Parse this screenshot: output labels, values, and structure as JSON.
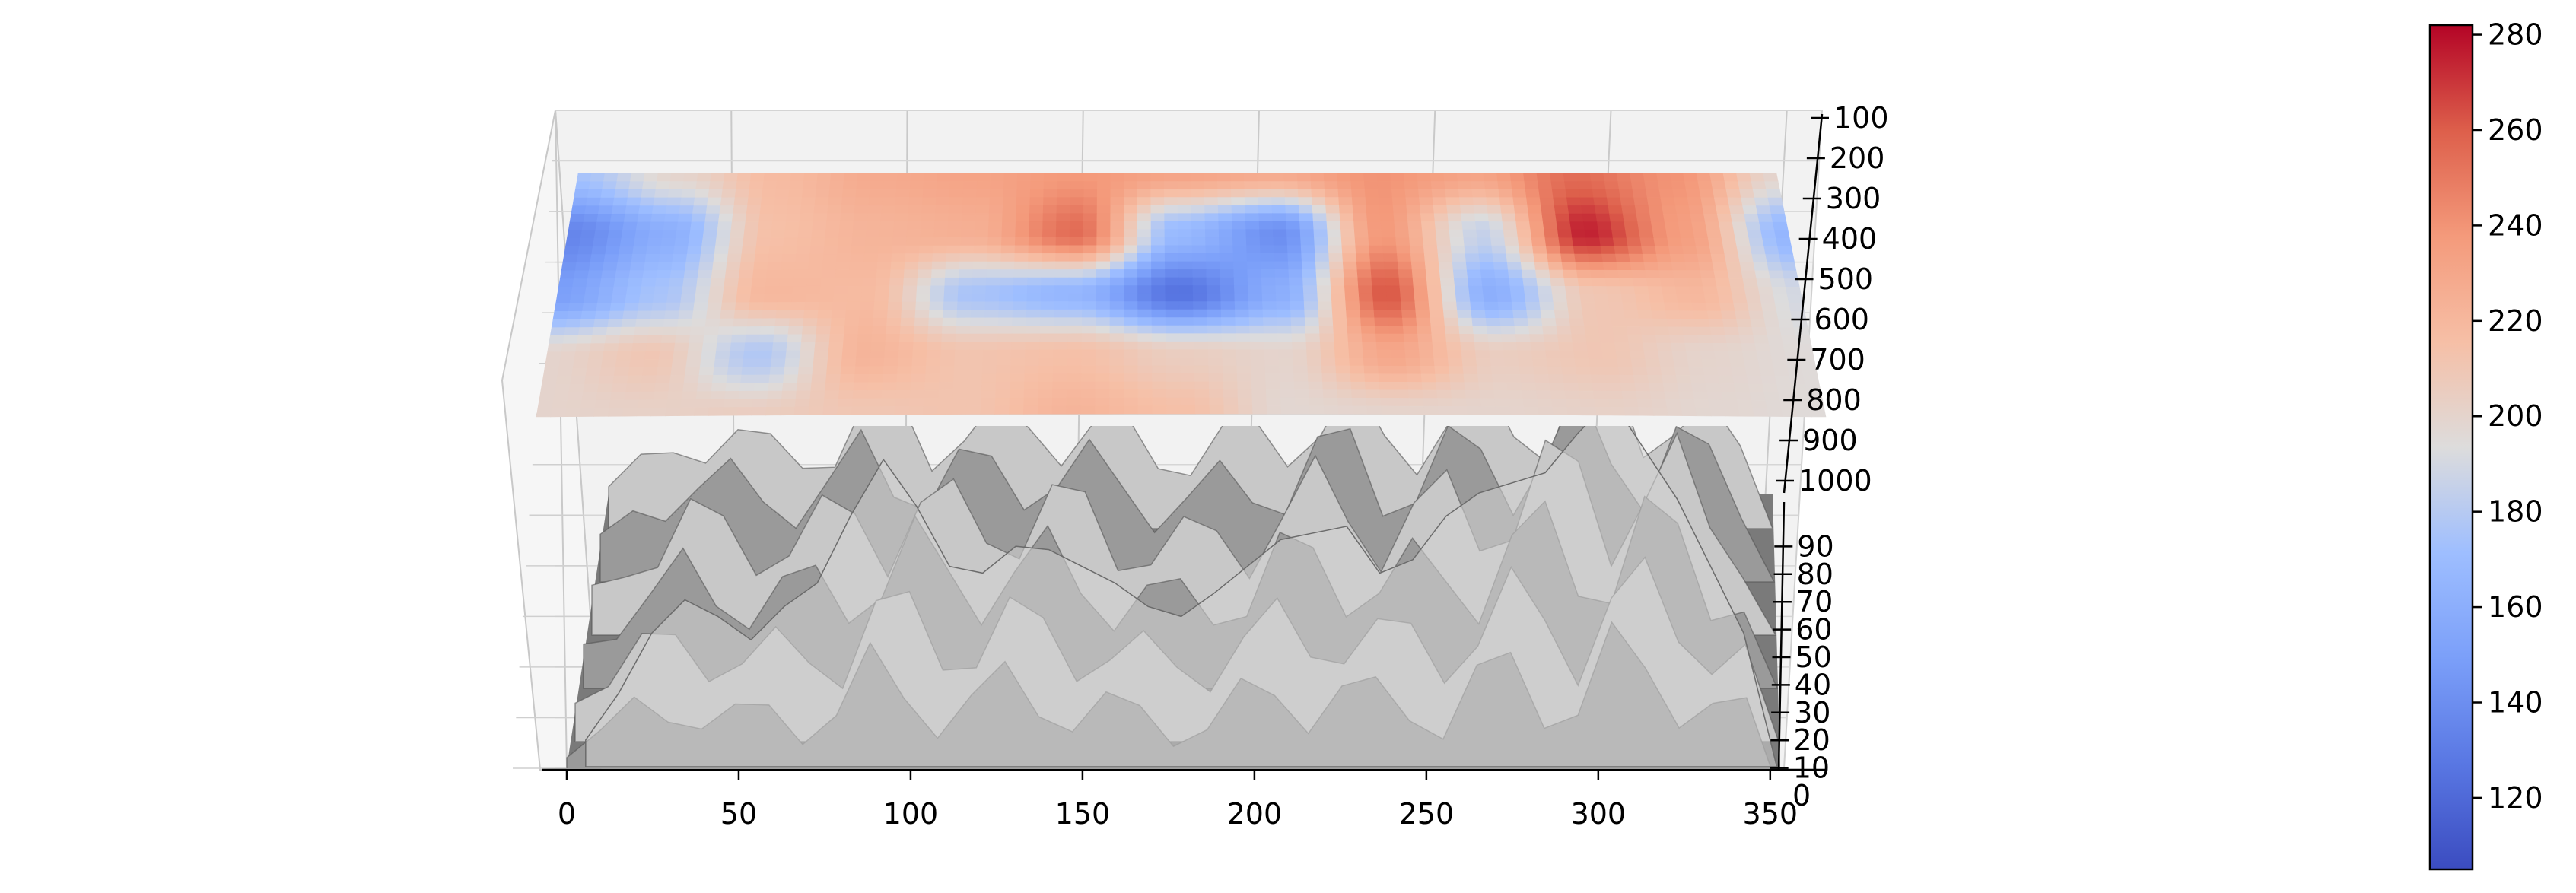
{
  "chart_data": {
    "type": "surface3d",
    "title": "",
    "x_axis": {
      "label": "",
      "range": [
        0,
        360
      ],
      "ticks": [
        0,
        50,
        100,
        150,
        200,
        250,
        300,
        350
      ],
      "tick_labels": [
        "0",
        "50",
        "100",
        "150",
        "200",
        "250",
        "300",
        "350"
      ]
    },
    "pressure_axis": {
      "label": "",
      "range": [
        100,
        1000
      ],
      "ticks": [
        100,
        200,
        300,
        400,
        500,
        600,
        700,
        800,
        900,
        1000
      ],
      "tick_labels": [
        "100",
        "200",
        "300",
        "400",
        "500",
        "600",
        "700",
        "800",
        "900",
        "1000"
      ]
    },
    "y_axis": {
      "label": "",
      "range": [
        0,
        100
      ],
      "ticks": [
        0,
        10,
        20,
        30,
        40,
        50,
        60,
        70,
        80,
        90
      ],
      "tick_labels": [
        "0",
        "10",
        "20",
        "30",
        "40",
        "50",
        "60",
        "70",
        "80",
        "90"
      ]
    },
    "colorbar": {
      "colormap": "coolwarm",
      "range": [
        105,
        282
      ],
      "ticks": [
        120,
        140,
        160,
        180,
        200,
        220,
        240,
        260,
        280
      ],
      "tick_labels": [
        "120",
        "140",
        "160",
        "180",
        "200",
        "220",
        "240",
        "260",
        "280"
      ]
    },
    "temperature_surface": {
      "description_values": "estimated field values in colorbar units",
      "x": [
        0,
        30,
        60,
        90,
        120,
        150,
        180,
        210,
        240,
        270,
        300,
        330,
        360
      ],
      "rows": [
        [
          175,
          200,
          218,
          228,
          232,
          238,
          232,
          228,
          240,
          232,
          255,
          240,
          200
        ],
        [
          135,
          160,
          215,
          222,
          225,
          255,
          168,
          140,
          238,
          185,
          275,
          235,
          165
        ],
        [
          150,
          175,
          220,
          218,
          175,
          165,
          125,
          160,
          262,
          160,
          210,
          220,
          190
        ],
        [
          200,
          210,
          178,
          222,
          212,
          215,
          205,
          200,
          230,
          205,
          210,
          200,
          195
        ],
        [
          200,
          202,
          205,
          210,
          212,
          222,
          215,
          198,
          200,
          200,
          202,
          198,
          195
        ]
      ]
    },
    "terrain_surface": {
      "description_values": "estimated terrain heights in y-axis units",
      "x": [
        0,
        10,
        20,
        30,
        40,
        50,
        60,
        70,
        80,
        90,
        100,
        110,
        120,
        130,
        140,
        150,
        160,
        170,
        180,
        190,
        200,
        210,
        220,
        230,
        240,
        250,
        260,
        270,
        280,
        290,
        300,
        310,
        320,
        330,
        340,
        350
      ],
      "ridge_heights": [
        8,
        22,
        40,
        50,
        45,
        38,
        48,
        55,
        75,
        92,
        78,
        60,
        58,
        66,
        65,
        60,
        55,
        48,
        45,
        52,
        60,
        68,
        70,
        72,
        58,
        62,
        75,
        82,
        85,
        88,
        100,
        110,
        95,
        80,
        60,
        40
      ],
      "base_heights": [
        3,
        8,
        12,
        14,
        12,
        10,
        8,
        6,
        5,
        6,
        8,
        10,
        12,
        14,
        12,
        10,
        8,
        6,
        5,
        6,
        8,
        10,
        12,
        14,
        10,
        8,
        6,
        10,
        12,
        8,
        6,
        8,
        10,
        14,
        12,
        10
      ]
    }
  }
}
